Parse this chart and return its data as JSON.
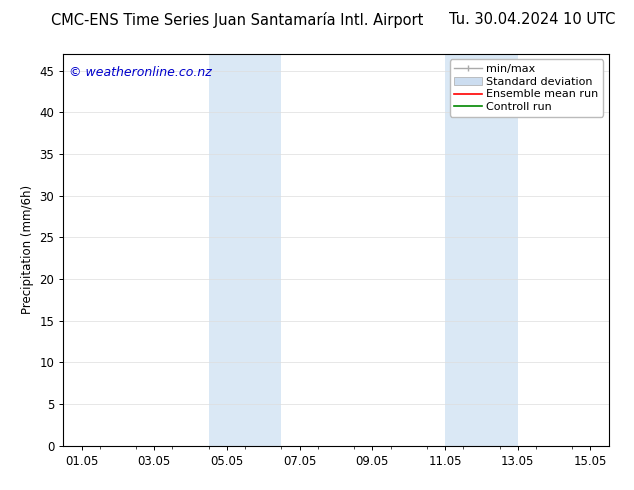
{
  "title_left": "CMC-ENS Time Series Juan Santamaría Intl. Airport",
  "title_right": "Tu. 30.04.2024 10 UTC",
  "ylabel": "Precipitation (mm/6h)",
  "watermark": "© weatheronline.co.nz",
  "watermark_color": "#0000cc",
  "xlim_start": 0.5,
  "xlim_end": 15.5,
  "ylim_min": 0,
  "ylim_max": 47,
  "yticks": [
    0,
    5,
    10,
    15,
    20,
    25,
    30,
    35,
    40,
    45
  ],
  "xtick_labels": [
    "01.05",
    "03.05",
    "05.05",
    "07.05",
    "09.05",
    "11.05",
    "13.05",
    "15.05"
  ],
  "xtick_positions": [
    1,
    3,
    5,
    7,
    9,
    11,
    13,
    15
  ],
  "bg_color": "#ffffff",
  "plot_bg_color": "#ffffff",
  "shaded_bands": [
    {
      "x_start": 4.5,
      "x_end": 5.5,
      "color": "#dae8f5"
    },
    {
      "x_start": 5.5,
      "x_end": 6.5,
      "color": "#dae8f5"
    },
    {
      "x_start": 11.0,
      "x_end": 12.0,
      "color": "#dae8f5"
    },
    {
      "x_start": 12.0,
      "x_end": 13.0,
      "color": "#dae8f5"
    }
  ],
  "legend_items": [
    {
      "label": "min/max",
      "color": "#aaaaaa",
      "lw": 1.0,
      "type": "errorbar"
    },
    {
      "label": "Standard deviation",
      "facecolor": "#ccddf0",
      "edgecolor": "#aaaaaa",
      "lw": 0.5,
      "type": "band"
    },
    {
      "label": "Ensemble mean run",
      "color": "#ff0000",
      "lw": 1.2,
      "type": "line"
    },
    {
      "label": "Controll run",
      "color": "#008800",
      "lw": 1.2,
      "type": "line"
    }
  ],
  "font_family": "DejaVu Sans",
  "title_fontsize": 10.5,
  "axis_fontsize": 8.5,
  "tick_fontsize": 8.5,
  "legend_fontsize": 8,
  "watermark_fontsize": 9,
  "grid_color": "#dddddd",
  "border_color": "#000000"
}
